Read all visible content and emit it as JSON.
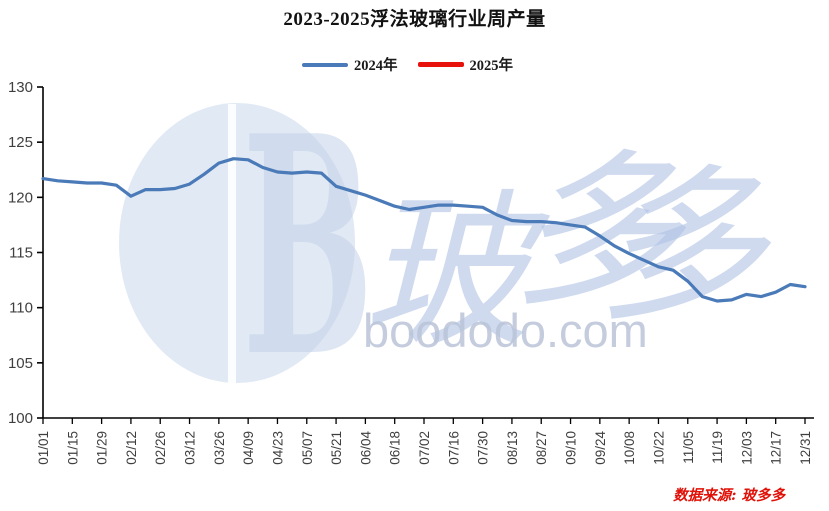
{
  "title": "2023-2025浮法玻璃行业周产量",
  "legend": {
    "items": [
      {
        "label": "2024年",
        "color": "#4a7ab8"
      },
      {
        "label": "2025年",
        "color": "#e8120c"
      }
    ]
  },
  "source_note": "数据来源: 玻多多",
  "watermark": {
    "logo_letter": "B",
    "brand_cn_chars": [
      "玻",
      "多",
      "多"
    ],
    "brand_url": "boododo.com",
    "ellipse_color": "#d7e1f0",
    "text_color": "#b0c3e5",
    "url_color": "#bac4d8"
  },
  "axis": {
    "tick_color": "#3f3f3f",
    "spine_color": "#000000"
  },
  "chart_data": {
    "type": "line",
    "title": "2023-2025浮法玻璃行业周产量",
    "xlabel": "",
    "ylabel": "",
    "ylim": [
      100,
      130
    ],
    "yticks": [
      100,
      105,
      110,
      115,
      120,
      125,
      130
    ],
    "grid": false,
    "legend_position": "top",
    "x_tick_labels": [
      "01/01",
      "01/15",
      "01/29",
      "02/12",
      "02/26",
      "03/12",
      "03/26",
      "04/09",
      "04/23",
      "05/07",
      "05/21",
      "06/04",
      "06/18",
      "07/02",
      "07/16",
      "07/30",
      "08/13",
      "08/27",
      "09/10",
      "09/24",
      "10/08",
      "10/22",
      "11/05",
      "11/19",
      "12/03",
      "12/17",
      "12/31"
    ],
    "series": [
      {
        "name": "2024年",
        "color": "#4a7ab8",
        "x": [
          "01/01",
          "01/08",
          "01/15",
          "01/22",
          "01/29",
          "02/05",
          "02/12",
          "02/19",
          "02/26",
          "03/05",
          "03/12",
          "03/19",
          "03/26",
          "04/02",
          "04/09",
          "04/16",
          "04/23",
          "04/30",
          "05/07",
          "05/14",
          "05/21",
          "05/28",
          "06/04",
          "06/11",
          "06/18",
          "06/25",
          "07/02",
          "07/09",
          "07/16",
          "07/23",
          "07/30",
          "08/06",
          "08/13",
          "08/20",
          "08/27",
          "09/03",
          "09/10",
          "09/17",
          "09/24",
          "10/01",
          "10/08",
          "10/15",
          "10/22",
          "10/29",
          "11/05",
          "11/12",
          "11/19",
          "11/26",
          "12/03",
          "12/10",
          "12/17",
          "12/24",
          "12/31"
        ],
        "values": [
          121.7,
          121.5,
          121.4,
          121.3,
          121.3,
          121.1,
          120.1,
          120.7,
          120.7,
          120.8,
          121.2,
          122.1,
          123.1,
          123.5,
          123.4,
          122.7,
          122.3,
          122.2,
          122.3,
          122.2,
          121.0,
          120.6,
          120.2,
          119.7,
          119.2,
          118.9,
          119.1,
          119.3,
          119.3,
          119.2,
          119.1,
          118.4,
          117.9,
          117.8,
          117.8,
          117.7,
          117.5,
          117.3,
          116.5,
          115.6,
          114.9,
          114.3,
          113.7,
          113.4,
          112.4,
          111.0,
          110.6,
          110.7,
          111.2,
          111.0,
          111.4,
          112.1,
          111.9
        ]
      },
      {
        "name": "2025年",
        "color": "#e8120c",
        "x": [],
        "values": []
      }
    ]
  }
}
